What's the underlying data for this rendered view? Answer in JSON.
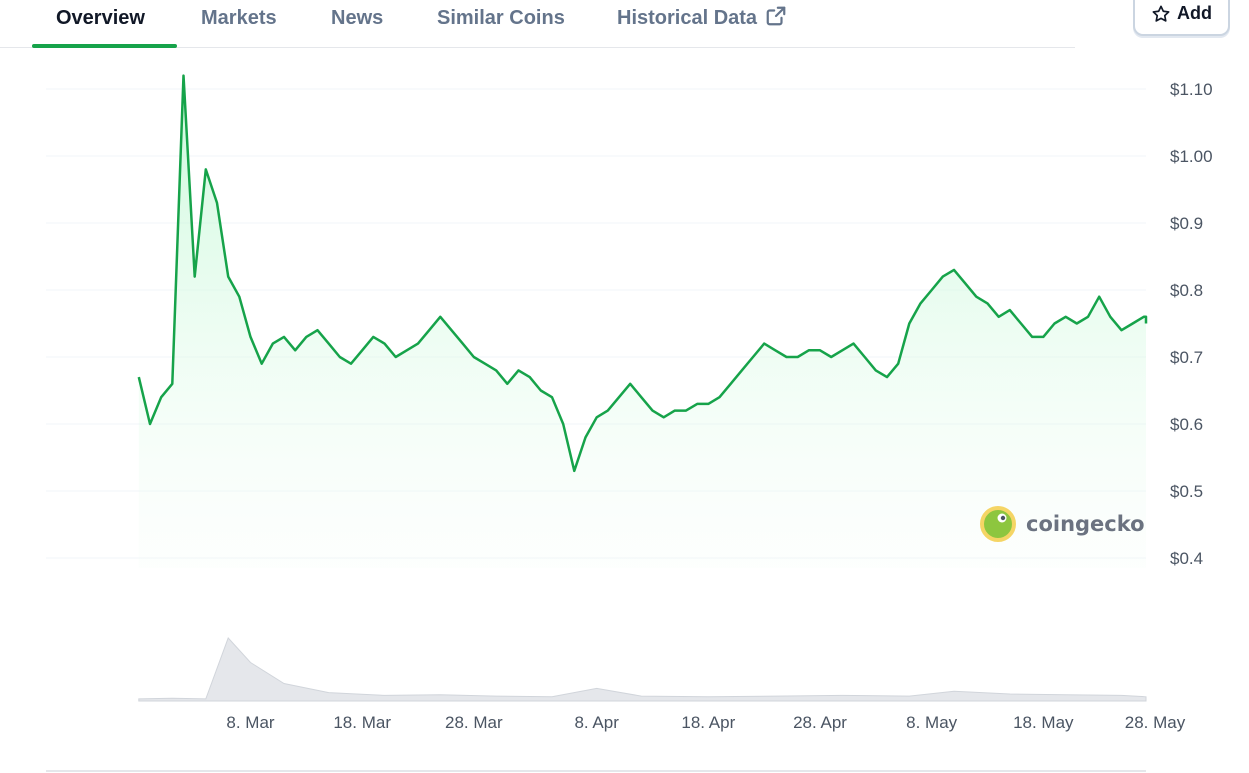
{
  "tabs": [
    {
      "label": "Overview",
      "active": true
    },
    {
      "label": "Markets"
    },
    {
      "label": "News"
    },
    {
      "label": "Similar Coins"
    },
    {
      "label": "Historical Data",
      "icon": "external-link-icon"
    }
  ],
  "add_button": {
    "label": "Add",
    "icon": "star-icon"
  },
  "watermark": {
    "text": "coingecko",
    "icon": "coingecko-logo"
  },
  "colors": {
    "line": "#16a34a",
    "area_top": "#dcfce7",
    "volume": "#e5e7eb",
    "grid": "#f1f5f9"
  },
  "chart_data": {
    "type": "area",
    "x_ticks": [
      "8. Mar",
      "18. Mar",
      "28. Mar",
      "8. Apr",
      "18. Apr",
      "28. Apr",
      "8. May",
      "18. May",
      "28. May"
    ],
    "y_ticks": [
      "$1.10",
      "$1.00",
      "$0.9",
      "$0.8",
      "$0.7",
      "$0.6",
      "$0.5",
      "$0.4"
    ],
    "y_tick_values": [
      1.1,
      1.0,
      0.9,
      0.8,
      0.7,
      0.6,
      0.5,
      0.4
    ],
    "ylim": [
      0.4,
      1.15
    ],
    "grid": true,
    "price_series": {
      "x": [
        "2024-02-27",
        "2024-02-28",
        "2024-02-29",
        "2024-03-01",
        "2024-03-02",
        "2024-03-03",
        "2024-03-04",
        "2024-03-05",
        "2024-03-06",
        "2024-03-07",
        "2024-03-08",
        "2024-03-09",
        "2024-03-10",
        "2024-03-11",
        "2024-03-12",
        "2024-03-13",
        "2024-03-14",
        "2024-03-15",
        "2024-03-16",
        "2024-03-17",
        "2024-03-18",
        "2024-03-19",
        "2024-03-20",
        "2024-03-21",
        "2024-03-22",
        "2024-03-23",
        "2024-03-24",
        "2024-03-25",
        "2024-03-26",
        "2024-03-27",
        "2024-03-28",
        "2024-03-29",
        "2024-03-30",
        "2024-03-31",
        "2024-04-01",
        "2024-04-02",
        "2024-04-03",
        "2024-04-04",
        "2024-04-05",
        "2024-04-06",
        "2024-04-07",
        "2024-04-08",
        "2024-04-09",
        "2024-04-10",
        "2024-04-11",
        "2024-04-12",
        "2024-04-13",
        "2024-04-14",
        "2024-04-15",
        "2024-04-16",
        "2024-04-17",
        "2024-04-18",
        "2024-04-19",
        "2024-04-20",
        "2024-04-21",
        "2024-04-22",
        "2024-04-23",
        "2024-04-24",
        "2024-04-25",
        "2024-04-26",
        "2024-04-27",
        "2024-04-28",
        "2024-04-29",
        "2024-04-30",
        "2024-05-01",
        "2024-05-02",
        "2024-05-03",
        "2024-05-04",
        "2024-05-05",
        "2024-05-06",
        "2024-05-07",
        "2024-05-08",
        "2024-05-09",
        "2024-05-10",
        "2024-05-11",
        "2024-05-12",
        "2024-05-13",
        "2024-05-14",
        "2024-05-15",
        "2024-05-16",
        "2024-05-17",
        "2024-05-18",
        "2024-05-19",
        "2024-05-20",
        "2024-05-21",
        "2024-05-22",
        "2024-05-23",
        "2024-05-24",
        "2024-05-25",
        "2024-05-26",
        "2024-05-27",
        "2024-05-28",
        "2024-05-29"
      ],
      "y": [
        0.67,
        0.6,
        0.64,
        0.66,
        1.12,
        0.82,
        0.98,
        0.93,
        0.82,
        0.79,
        0.73,
        0.69,
        0.72,
        0.73,
        0.71,
        0.73,
        0.74,
        0.72,
        0.7,
        0.69,
        0.71,
        0.73,
        0.72,
        0.7,
        0.71,
        0.72,
        0.74,
        0.76,
        0.74,
        0.72,
        0.7,
        0.69,
        0.68,
        0.66,
        0.68,
        0.67,
        0.65,
        0.64,
        0.6,
        0.53,
        0.58,
        0.61,
        0.62,
        0.64,
        0.66,
        0.64,
        0.62,
        0.61,
        0.62,
        0.62,
        0.63,
        0.63,
        0.64,
        0.66,
        0.68,
        0.7,
        0.72,
        0.71,
        0.7,
        0.7,
        0.71,
        0.71,
        0.7,
        0.71,
        0.72,
        0.7,
        0.68,
        0.67,
        0.69,
        0.75,
        0.78,
        0.8,
        0.82,
        0.83,
        0.81,
        0.79,
        0.78,
        0.76,
        0.77,
        0.75,
        0.73,
        0.73,
        0.75,
        0.76,
        0.75,
        0.76,
        0.79,
        0.76,
        0.74,
        0.75,
        0.76,
        0.76,
        0.75
      ]
    },
    "volume_series": {
      "x": [
        "2024-02-27",
        "2024-03-01",
        "2024-03-04",
        "2024-03-06",
        "2024-03-08",
        "2024-03-11",
        "2024-03-15",
        "2024-03-20",
        "2024-03-25",
        "2024-03-30",
        "2024-04-04",
        "2024-04-08",
        "2024-04-12",
        "2024-04-18",
        "2024-04-24",
        "2024-04-30",
        "2024-05-06",
        "2024-05-10",
        "2024-05-15",
        "2024-05-20",
        "2024-05-25",
        "2024-05-29"
      ],
      "y": [
        0.03,
        0.04,
        0.03,
        0.9,
        0.55,
        0.25,
        0.12,
        0.08,
        0.09,
        0.07,
        0.06,
        0.18,
        0.07,
        0.06,
        0.07,
        0.08,
        0.07,
        0.14,
        0.1,
        0.09,
        0.08,
        0.06
      ]
    }
  }
}
